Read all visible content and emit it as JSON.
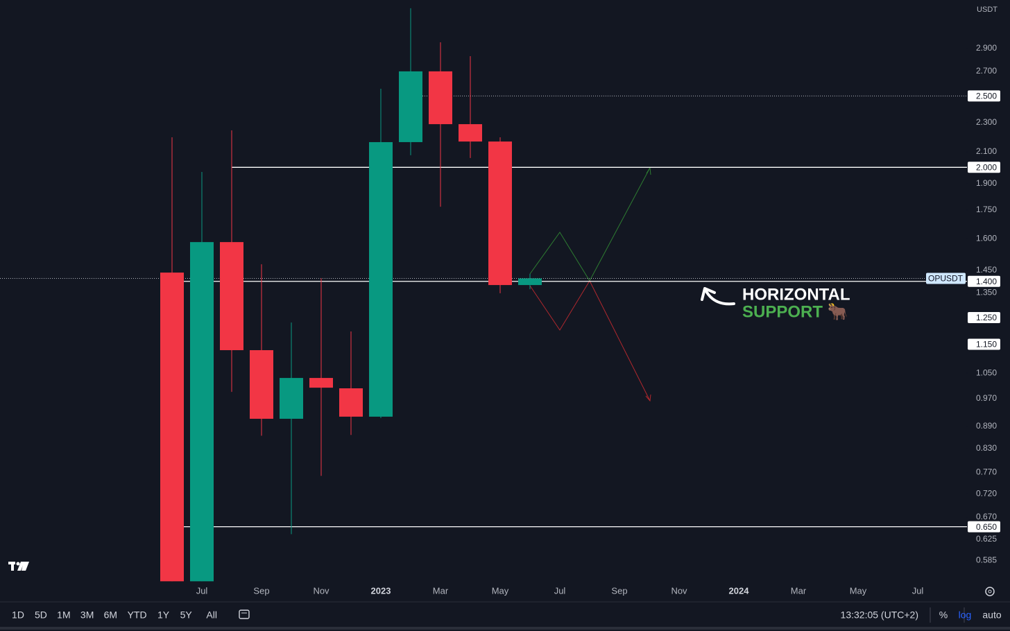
{
  "currency": "USDT",
  "chart_data": {
    "type": "candlestick",
    "log_scale": true,
    "up_color": "#089981",
    "down_color": "#f23645",
    "categories": [
      null,
      "Jul",
      null,
      "Sep",
      null,
      "Nov",
      null,
      "2023",
      null,
      "Mar",
      null,
      "May",
      null,
      "Jul",
      null,
      "Sep",
      null,
      "Nov",
      null,
      "2024",
      null,
      "Mar",
      null,
      "May",
      null,
      "Jul"
    ],
    "open": [
      1.439,
      0.548,
      1.583,
      1.129,
      0.911,
      1.035,
      1.002,
      0.917,
      2.164,
      2.7,
      2.289,
      2.168,
      1.384,
      null,
      null,
      null,
      null,
      null,
      null,
      null,
      null,
      null,
      null,
      null,
      null,
      null
    ],
    "high": [
      2.197,
      1.971,
      2.245,
      1.477,
      1.231,
      1.414,
      1.197,
      2.557,
      3.289,
      2.957,
      2.831,
      2.197,
      1.433,
      null,
      null,
      null,
      null,
      null,
      null,
      null,
      null,
      null,
      null,
      null,
      null,
      null
    ],
    "low": [
      0.548,
      0.548,
      0.991,
      0.864,
      0.635,
      0.762,
      0.866,
      0.913,
      2.077,
      1.768,
      2.059,
      1.349,
      1.366,
      null,
      null,
      null,
      null,
      null,
      null,
      null,
      null,
      null,
      null,
      null,
      null,
      null
    ],
    "close": [
      0.548,
      1.583,
      1.129,
      0.911,
      1.035,
      1.004,
      0.917,
      2.164,
      2.7,
      2.289,
      2.168,
      1.384,
      1.413,
      null,
      null,
      null,
      null,
      null,
      null,
      null,
      null,
      null,
      null,
      null,
      null,
      null
    ],
    "ylim": [
      0.546,
      3.375
    ],
    "yticks": [
      {
        "value": 2.9,
        "label": "2.900"
      },
      {
        "value": 2.7,
        "label": "2.700"
      },
      {
        "value": 2.3,
        "label": "2.300"
      },
      {
        "value": 2.1,
        "label": "2.100"
      },
      {
        "value": 1.9,
        "label": "1.900"
      },
      {
        "value": 1.75,
        "label": "1.750"
      },
      {
        "value": 1.6,
        "label": "1.600"
      },
      {
        "value": 1.45,
        "label": "1.450"
      },
      {
        "value": 1.35,
        "label": "1.350"
      },
      {
        "value": 1.05,
        "label": "1.050"
      },
      {
        "value": 0.97,
        "label": "0.970"
      },
      {
        "value": 0.89,
        "label": "0.890"
      },
      {
        "value": 0.83,
        "label": "0.830"
      },
      {
        "value": 0.77,
        "label": "0.770"
      },
      {
        "value": 0.72,
        "label": "0.720"
      },
      {
        "value": 0.67,
        "label": "0.670"
      },
      {
        "value": 0.625,
        "label": "0.625"
      },
      {
        "value": 0.585,
        "label": "0.585"
      }
    ],
    "levels": [
      {
        "value": 2.5,
        "label": "2.500",
        "style": "dotted"
      },
      {
        "value": 2.0,
        "label": "2.000",
        "style": "solid"
      },
      {
        "value": 1.4,
        "label": "1.400",
        "style": "solid"
      },
      {
        "value": 1.25,
        "label": "1.250",
        "style": "label"
      },
      {
        "value": 1.15,
        "label": "1.150",
        "style": "label"
      },
      {
        "value": 0.65,
        "label": "0.650",
        "style": "solid"
      }
    ],
    "last_price": {
      "name": "OPUSDT",
      "value": 1.413
    },
    "annotation": {
      "line1": "HORIZONTAL",
      "line2": "SUPPORT 🐂"
    }
  },
  "toolbar": {
    "ranges": [
      "1D",
      "5D",
      "1M",
      "3M",
      "6M",
      "YTD",
      "1Y",
      "5Y",
      "All"
    ],
    "time": "13:32:05 (UTC+2)",
    "options": [
      "%",
      "log",
      "auto"
    ]
  }
}
